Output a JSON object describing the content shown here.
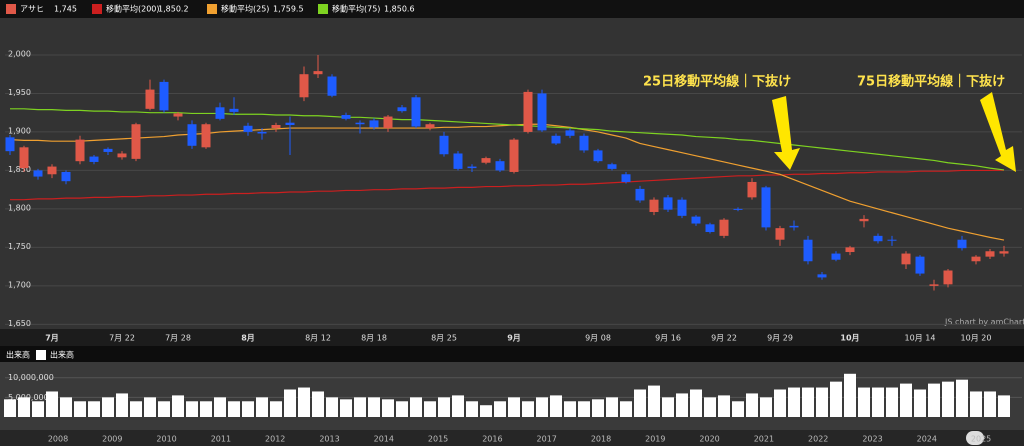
{
  "chart_data": {
    "type": "candlestick",
    "categories": [
      null,
      null,
      null,
      "7月",
      null,
      null,
      null,
      null,
      "7月 22",
      null,
      null,
      null,
      "7月 28",
      null,
      null,
      null,
      null,
      "8月",
      null,
      null,
      null,
      null,
      "8月 12",
      null,
      null,
      null,
      "8月 18",
      null,
      null,
      null,
      null,
      "8月 25",
      null,
      null,
      null,
      null,
      "9月",
      null,
      null,
      null,
      null,
      null,
      "9月 08",
      null,
      null,
      null,
      null,
      "9月 16",
      null,
      null,
      null,
      "9月 22",
      null,
      null,
      null,
      "9月 29",
      null,
      null,
      null,
      null,
      "10月",
      null,
      null,
      null,
      null,
      "10月 14",
      null,
      null,
      null,
      "10月 20",
      null,
      null
    ],
    "series": [
      {
        "type": "candlestick",
        "name": "アサヒ",
        "legend_value": "1,745",
        "color": "#e05848",
        "down_color": "#1e5cff",
        "open": [
          1893,
          1853,
          1850,
          1845,
          1848,
          1862,
          1868,
          1878,
          1867,
          1865,
          1930,
          1965,
          1920,
          1910,
          1880,
          1932,
          1930,
          1908,
          1900,
          1905,
          1912,
          1945,
          1975,
          1972,
          1922,
          1912,
          1915,
          1905,
          1932,
          1945,
          1905,
          1895,
          1872,
          1855,
          1860,
          1862,
          1848,
          1900,
          1950,
          1895,
          1902,
          1895,
          1876,
          1858,
          1845,
          1826,
          1796,
          1815,
          1812,
          1790,
          1780,
          1765,
          1800,
          1815,
          1828,
          1760,
          1778,
          1760,
          1715,
          1742,
          1744,
          1784,
          1765,
          1760,
          1728,
          1738,
          1700,
          1702,
          1760,
          1732,
          1738,
          1742
        ],
        "high": [
          1896,
          1882,
          1852,
          1858,
          1850,
          1895,
          1870,
          1880,
          1875,
          1912,
          1968,
          1968,
          1926,
          1915,
          1912,
          1938,
          1945,
          1912,
          1905,
          1912,
          1920,
          1985,
          2000,
          1975,
          1925,
          1915,
          1918,
          1922,
          1935,
          1948,
          1912,
          1900,
          1875,
          1858,
          1868,
          1865,
          1892,
          1955,
          1955,
          1898,
          1905,
          1898,
          1878,
          1860,
          1848,
          1830,
          1815,
          1818,
          1815,
          1792,
          1782,
          1788,
          1802,
          1840,
          1830,
          1778,
          1785,
          1765,
          1718,
          1745,
          1752,
          1792,
          1768,
          1765,
          1745,
          1740,
          1708,
          1722,
          1765,
          1740,
          1748,
          1752
        ],
        "low": [
          1870,
          1848,
          1838,
          1840,
          1832,
          1858,
          1858,
          1870,
          1864,
          1862,
          1928,
          1925,
          1915,
          1878,
          1878,
          1915,
          1922,
          1895,
          1890,
          1900,
          1870,
          1940,
          1970,
          1945,
          1915,
          1898,
          1903,
          1900,
          1925,
          1905,
          1902,
          1868,
          1850,
          1848,
          1858,
          1848,
          1846,
          1898,
          1900,
          1883,
          1892,
          1873,
          1860,
          1850,
          1833,
          1808,
          1792,
          1796,
          1788,
          1778,
          1768,
          1762,
          1797,
          1812,
          1772,
          1752,
          1772,
          1728,
          1708,
          1732,
          1740,
          1776,
          1755,
          1752,
          1722,
          1713,
          1694,
          1698,
          1746,
          1728,
          1735,
          1738
        ],
        "close": [
          1875,
          1880,
          1842,
          1855,
          1836,
          1890,
          1861,
          1874,
          1872,
          1910,
          1955,
          1928,
          1924,
          1882,
          1910,
          1917,
          1926,
          1900,
          1898,
          1909,
          1909,
          1975,
          1979,
          1947,
          1917,
          1910,
          1906,
          1920,
          1927,
          1907,
          1910,
          1871,
          1852,
          1853,
          1866,
          1850,
          1890,
          1952,
          1902,
          1885,
          1895,
          1876,
          1862,
          1852,
          1835,
          1811,
          1812,
          1799,
          1791,
          1781,
          1770,
          1786,
          1799,
          1835,
          1776,
          1775,
          1776,
          1732,
          1711,
          1734,
          1750,
          1787,
          1758,
          1759,
          1742,
          1716,
          1702,
          1720,
          1749,
          1738,
          1745,
          1745
        ]
      },
      {
        "type": "line",
        "name": "移動平均(200)",
        "legend_value": "1,850.2",
        "color": "#cc1f1f",
        "values": [
          1812,
          1812,
          1813,
          1813,
          1814,
          1814,
          1815,
          1815,
          1816,
          1816,
          1817,
          1817,
          1818,
          1818,
          1819,
          1819,
          1820,
          1820,
          1821,
          1821,
          1822,
          1822,
          1823,
          1823,
          1824,
          1824,
          1825,
          1825,
          1826,
          1826,
          1827,
          1827,
          1828,
          1828,
          1829,
          1829,
          1830,
          1830,
          1831,
          1831,
          1832,
          1832,
          1833,
          1834,
          1835,
          1836,
          1837,
          1838,
          1839,
          1840,
          1841,
          1842,
          1843,
          1843,
          1844,
          1844,
          1845,
          1845,
          1846,
          1846,
          1847,
          1847,
          1848,
          1848,
          1848,
          1849,
          1849,
          1849,
          1850,
          1850,
          1850,
          1850.2
        ]
      },
      {
        "type": "line",
        "name": "移動平均(25)",
        "legend_value": "1,759.5",
        "color": "#f0a030",
        "values": [
          1890,
          1889,
          1889,
          1888,
          1888,
          1888,
          1889,
          1890,
          1891,
          1892,
          1893,
          1894,
          1896,
          1897,
          1898,
          1900,
          1901,
          1902,
          1903,
          1904,
          1905,
          1905,
          1905,
          1905,
          1905,
          1905,
          1905,
          1905,
          1905,
          1905,
          1905,
          1906,
          1906,
          1907,
          1907,
          1908,
          1909,
          1910,
          1910,
          1908,
          1906,
          1903,
          1900,
          1896,
          1892,
          1885,
          1881,
          1877,
          1873,
          1869,
          1865,
          1861,
          1857,
          1853,
          1849,
          1845,
          1838,
          1831,
          1824,
          1817,
          1810,
          1805,
          1800,
          1795,
          1790,
          1785,
          1780,
          1775,
          1771,
          1767,
          1763,
          1759.5
        ]
      },
      {
        "type": "line",
        "name": "移動平均(75)",
        "legend_value": "1,850.6",
        "color": "#7ed321",
        "values": [
          1930,
          1930,
          1929,
          1929,
          1928,
          1928,
          1927,
          1927,
          1926,
          1926,
          1925,
          1925,
          1925,
          1924,
          1924,
          1924,
          1923,
          1923,
          1923,
          1922,
          1922,
          1921,
          1921,
          1920,
          1919,
          1919,
          1918,
          1917,
          1916,
          1916,
          1915,
          1914,
          1913,
          1912,
          1911,
          1910,
          1909,
          1908,
          1907,
          1906,
          1905,
          1904,
          1903,
          1901,
          1900,
          1899,
          1898,
          1897,
          1896,
          1894,
          1893,
          1892,
          1890,
          1889,
          1887,
          1885,
          1883,
          1881,
          1879,
          1877,
          1875,
          1873,
          1871,
          1869,
          1867,
          1865,
          1863,
          1860,
          1858,
          1856,
          1853,
          1850.6
        ]
      }
    ],
    "ylim": [
      1644,
      2048
    ],
    "yticks": [
      {
        "value": 1650,
        "label": "1,650"
      },
      {
        "value": 1700,
        "label": "1,700"
      },
      {
        "value": 1750,
        "label": "1,750"
      },
      {
        "value": 1800,
        "label": "1,800"
      },
      {
        "value": 1850,
        "label": "1,850"
      },
      {
        "value": 1900,
        "label": "1,900"
      },
      {
        "value": 1950,
        "label": "1,950"
      },
      {
        "value": 2000,
        "label": "2,000"
      }
    ],
    "grid": true,
    "annotations": [
      {
        "text": "25日移動平均線｜下抜け"
      },
      {
        "text": "75日移動平均線｜下抜け"
      }
    ],
    "credit": "JS chart by amCharts",
    "volume": {
      "title": "出来高",
      "name": "出来高",
      "color": "#ffffff",
      "values": [
        4500000,
        5000000,
        4000000,
        6500000,
        5000000,
        4000000,
        4000000,
        5000000,
        6000000,
        4000000,
        5000000,
        4000000,
        5500000,
        4000000,
        4000000,
        5000000,
        4000000,
        4000000,
        5000000,
        4000000,
        7000000,
        7500000,
        6500000,
        5000000,
        4500000,
        5000000,
        5000000,
        4500000,
        4000000,
        5000000,
        4000000,
        5000000,
        5500000,
        4000000,
        3000000,
        4000000,
        5000000,
        4000000,
        5000000,
        5500000,
        4000000,
        4000000,
        4500000,
        5000000,
        4000000,
        7000000,
        8000000,
        5000000,
        6000000,
        7000000,
        5000000,
        5500000,
        4000000,
        6000000,
        5000000,
        7000000,
        7500000,
        7500000,
        7500000,
        9000000,
        11000000,
        7500000,
        7500000,
        7500000,
        8500000,
        7000000,
        8500000,
        9000000,
        9500000,
        6500000,
        6500000,
        5500000
      ],
      "ylim": [
        0,
        14000000
      ],
      "yticks": [
        {
          "value": 5000000,
          "label": "5,000,000"
        },
        {
          "value": 10000000,
          "label": "10,000,000"
        }
      ]
    },
    "scrollbar_labels": [
      "2008",
      "2009",
      "2010",
      "2011",
      "2012",
      "2013",
      "2014",
      "2015",
      "2016",
      "2017",
      "2018",
      "2019",
      "2020",
      "2021",
      "2022",
      "2023",
      "2024",
      "2025"
    ]
  }
}
